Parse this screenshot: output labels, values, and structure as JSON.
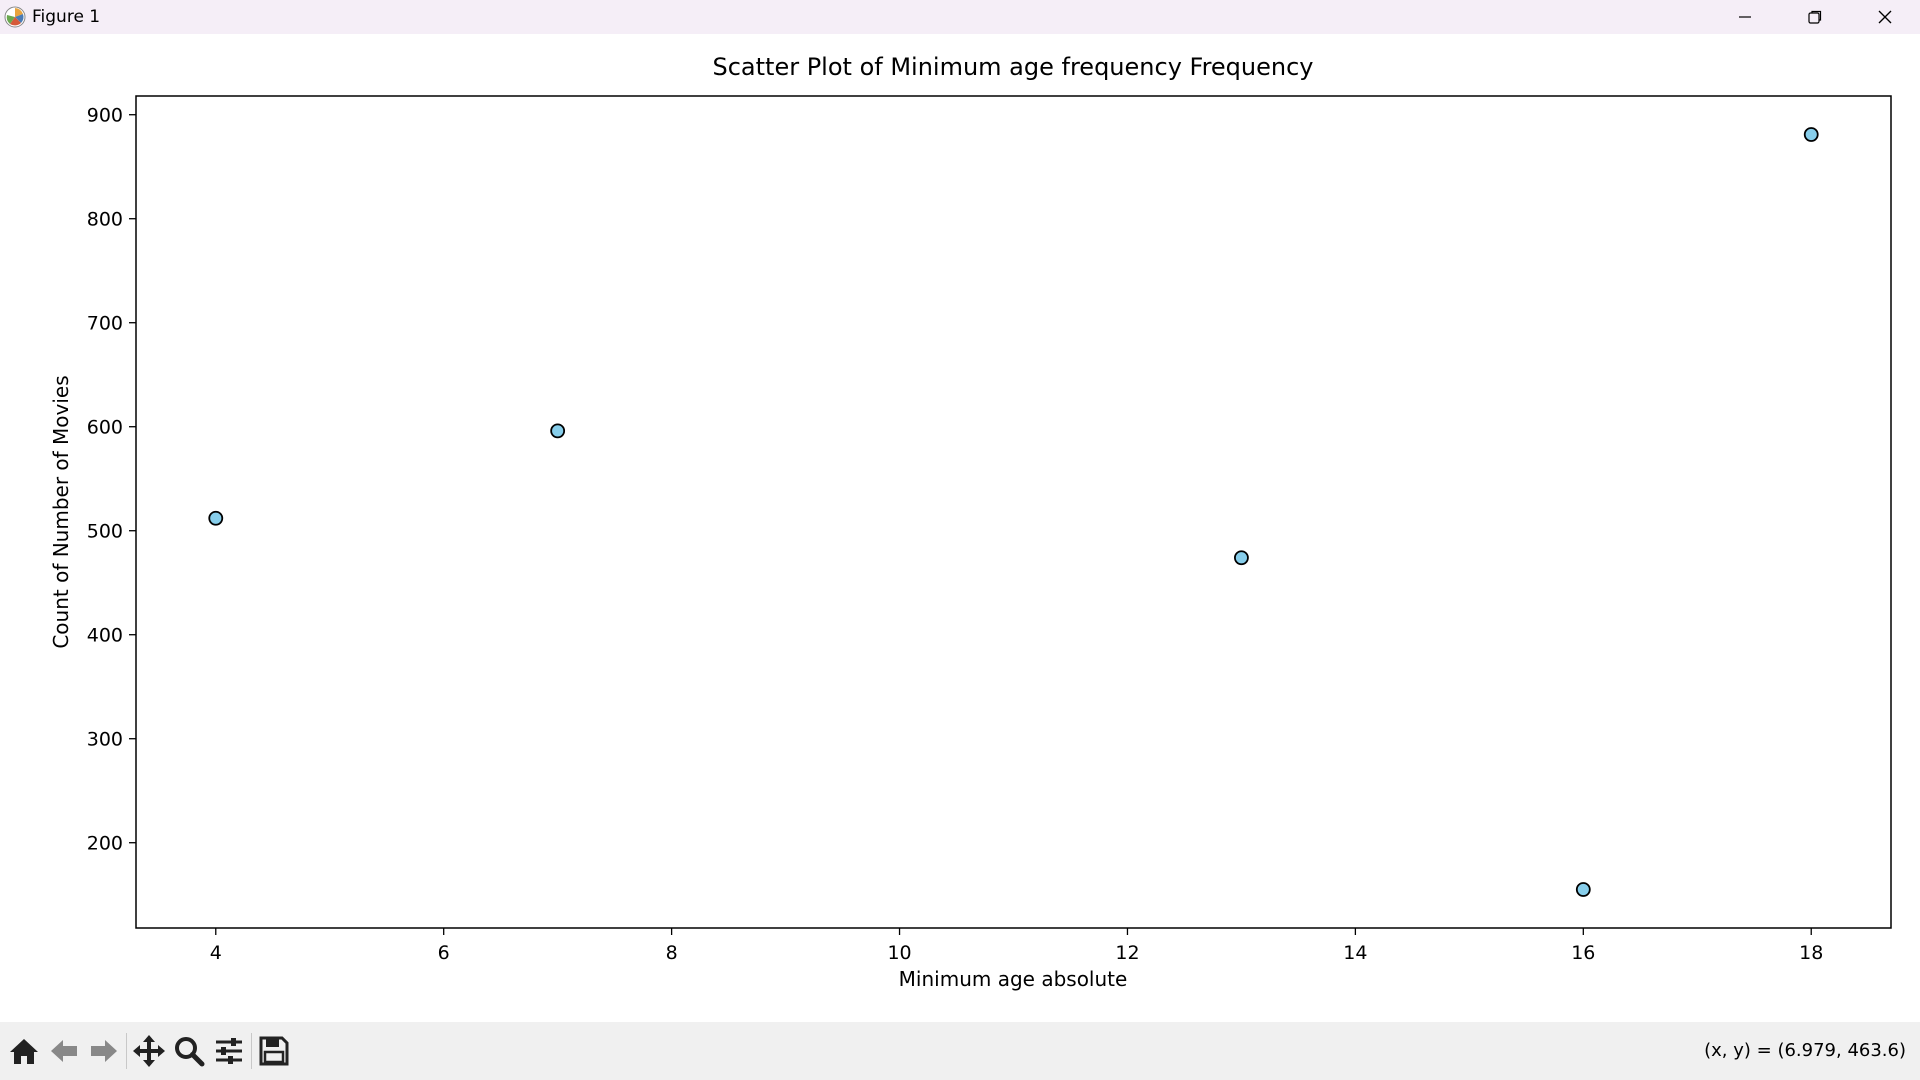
{
  "window": {
    "title": "Figure 1",
    "icons": [
      "matplotlib-logo-icon",
      "minimize-icon",
      "restore-icon",
      "close-icon"
    ]
  },
  "toolbar": {
    "buttons": [
      "home-icon",
      "back-arrow-icon",
      "forward-arrow-icon",
      "pan-icon",
      "zoom-icon",
      "configure-subplots-icon",
      "save-icon"
    ],
    "coords_text": "(x, y) = (6.979, 463.6)"
  },
  "colors": {
    "marker_fill": "#87ceeb",
    "marker_edge": "#000000",
    "titlebar": "#f5eef7",
    "toolbar": "#f0f0f0"
  },
  "chart_data": {
    "type": "scatter",
    "title": "Scatter Plot of Minimum age frequency Frequency",
    "xlabel": "Minimum age absolute",
    "ylabel": "Count of Number of Movies",
    "x": [
      4,
      7,
      13,
      16,
      18
    ],
    "y": [
      512,
      596,
      474,
      155,
      881
    ],
    "xlim": [
      3.3,
      18.7
    ],
    "ylim": [
      118,
      918
    ],
    "xticks": [
      4,
      6,
      8,
      10,
      12,
      14,
      16,
      18
    ],
    "yticks": [
      200,
      300,
      400,
      500,
      600,
      700,
      800,
      900
    ],
    "grid": false,
    "legend": false
  }
}
